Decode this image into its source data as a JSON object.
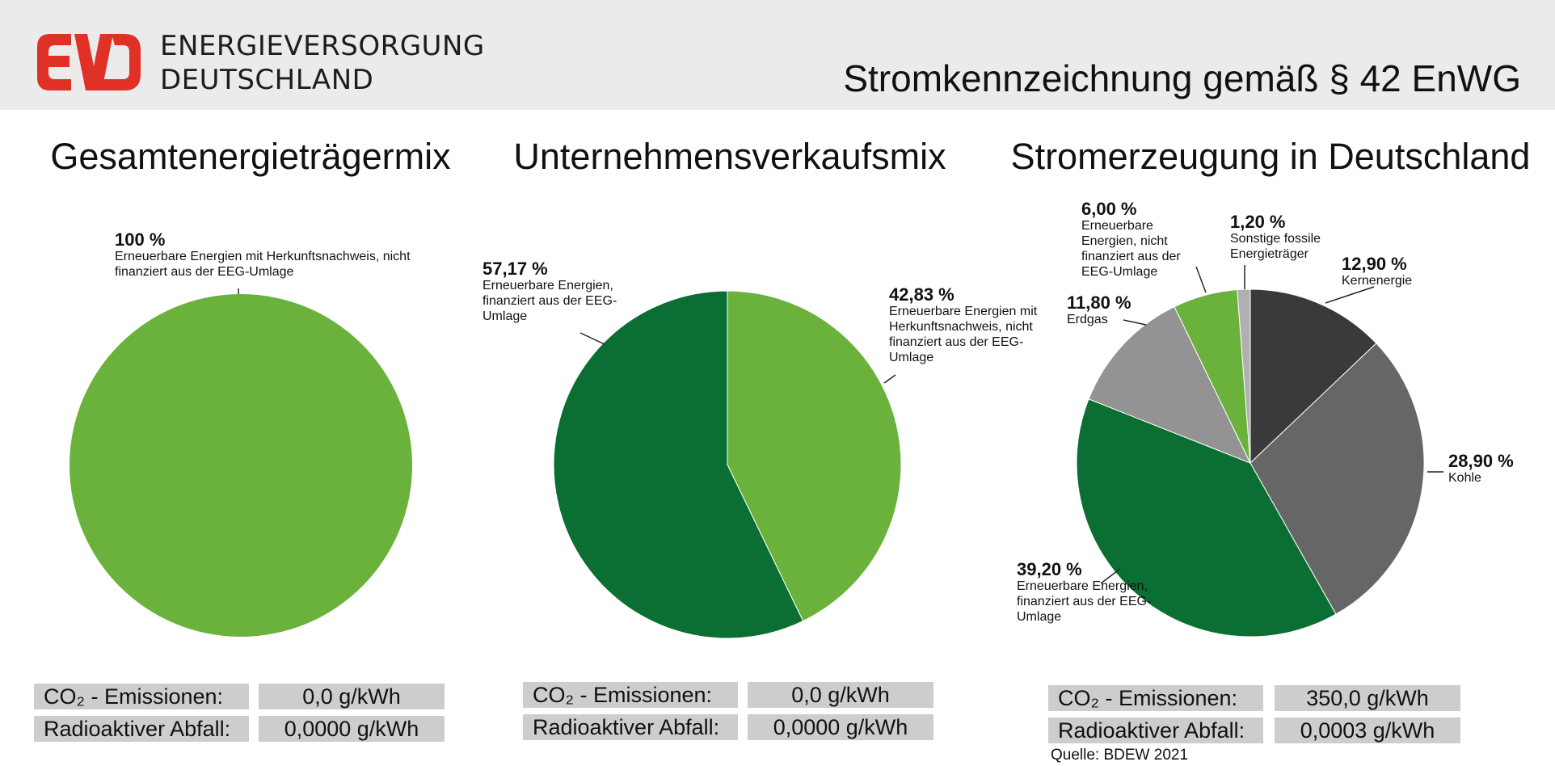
{
  "header": {
    "brand_line1": "ENERGIEVERSORGUNG",
    "brand_line2": "DEUTSCHLAND",
    "title": "Stromkennzeichnung gemäß § 42 EnWG",
    "logo": "EVD"
  },
  "colors": {
    "light_green": "#6ab23c",
    "dark_green": "#0b6e33",
    "dark_gray": "#3a3a3a",
    "mid_gray": "#666666",
    "light_gray": "#939393",
    "gray": "#b0b0b0",
    "logo_red": "#e03127"
  },
  "chart_data": [
    {
      "type": "pie",
      "title": "Gesamtenergieträgermix",
      "slices": [
        {
          "pct": "100 %",
          "value": 100,
          "label": "Erneuerbare Energien mit Herkunftsnachweis, nicht finanziert aus der EEG-Umlage",
          "color": "#6ab23c"
        }
      ],
      "co2_label": "CO₂ - Emissionen:",
      "co2_value": "0,0 g/kWh",
      "waste_label": "Radioaktiver Abfall:",
      "waste_value": "0,0000 g/kWh"
    },
    {
      "type": "pie",
      "title": "Unternehmensverkaufsmix",
      "slices": [
        {
          "pct": "42,83 %",
          "value": 42.83,
          "label": "Erneuerbare Energien mit Herkunftsnachweis, nicht finanziert aus der EEG-Umlage",
          "color": "#6ab23c"
        },
        {
          "pct": "57,17 %",
          "value": 57.17,
          "label": "Erneuerbare Energien, finanziert aus der EEG-Umlage",
          "color": "#0b6e33"
        }
      ],
      "co2_label": "CO₂ - Emissionen:",
      "co2_value": "0,0 g/kWh",
      "waste_label": "Radioaktiver Abfall:",
      "waste_value": "0,0000 g/kWh"
    },
    {
      "type": "pie",
      "title": "Stromerzeugung in Deutschland",
      "slices": [
        {
          "pct": "12,90 %",
          "value": 12.9,
          "label": "Kernenergie",
          "color": "#3a3a3a"
        },
        {
          "pct": "28,90 %",
          "value": 28.9,
          "label": "Kohle",
          "color": "#666666"
        },
        {
          "pct": "39,20 %",
          "value": 39.2,
          "label": "Erneuerbare Energien, finanziert aus der EEG-Umlage",
          "color": "#0b6e33"
        },
        {
          "pct": "11,80 %",
          "value": 11.8,
          "label": "Erdgas",
          "color": "#939393"
        },
        {
          "pct": "6,00 %",
          "value": 6.0,
          "label": "Erneuerbare Energien, nicht finanziert aus der EEG-Umlage",
          "color": "#6ab23c"
        },
        {
          "pct": "1,20 %",
          "value": 1.2,
          "label": "Sonstige fossile Energieträger",
          "color": "#b0b0b0"
        }
      ],
      "co2_label": "CO₂ - Emissionen:",
      "co2_value": "350,0 g/kWh",
      "waste_label": "Radioaktiver Abfall:",
      "waste_value": "0,0003 g/kWh"
    }
  ],
  "source": "Quelle: BDEW 2021"
}
